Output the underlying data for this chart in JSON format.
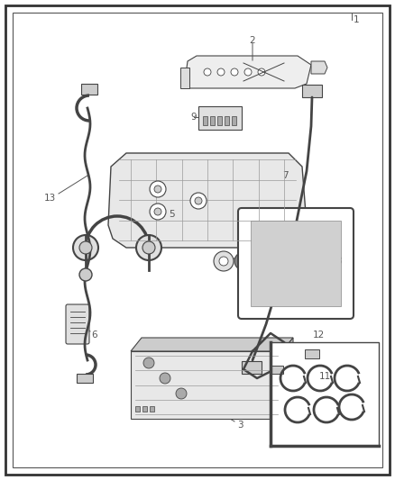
{
  "fig_width": 4.38,
  "fig_height": 5.33,
  "dpi": 100,
  "bg_color": "#ffffff",
  "border_color": "#444444",
  "line_color": "#444444",
  "gray_fill": "#d8d8d8",
  "dark_fill": "#888888",
  "label_fontsize": 7.5,
  "label_color": "#555555"
}
